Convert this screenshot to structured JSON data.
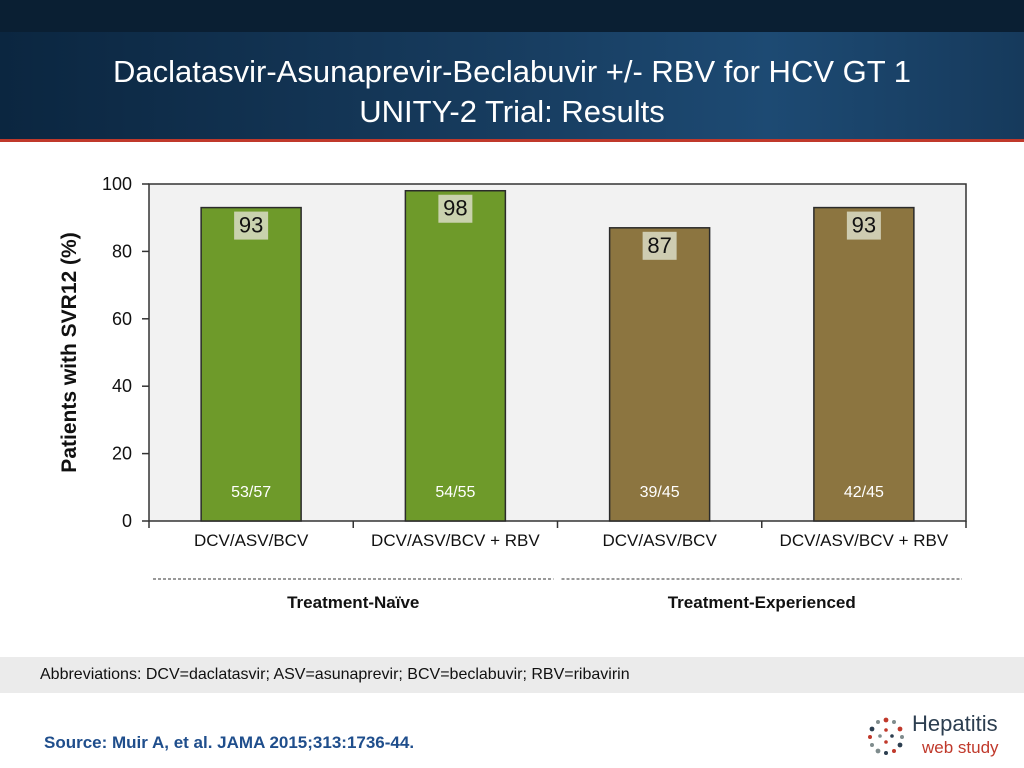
{
  "header": {
    "title_line1": "Daclatasvir-Asunaprevir-Beclabuvir +/- RBV for HCV GT 1",
    "title_line2": "UNITY-2 Trial: Results"
  },
  "chart_data": {
    "type": "bar",
    "title": "",
    "ylabel": "Patients with SVR12 (%)",
    "xlabel": "",
    "ylim": [
      0,
      100
    ],
    "yticks": [
      0,
      20,
      40,
      60,
      80,
      100
    ],
    "categories": [
      "DCV/ASV/BCV",
      "DCV/ASV/BCV + RBV",
      "DCV/ASV/BCV",
      "DCV/ASV/BCV + RBV"
    ],
    "values": [
      93,
      98,
      87,
      93
    ],
    "value_labels": [
      "93",
      "98",
      "87",
      "93"
    ],
    "fractions": [
      "53/57",
      "54/55",
      "39/45",
      "42/45"
    ],
    "colors": [
      "#6e9a2a",
      "#6e9a2a",
      "#8c7540",
      "#8c7540"
    ],
    "groups": [
      {
        "label": "Treatment-Naïve",
        "categories": [
          0,
          1
        ]
      },
      {
        "label": "Treatment-Experienced",
        "categories": [
          2,
          3
        ]
      }
    ],
    "grid": false,
    "legend": "none",
    "plot_background": "#f2f2f2"
  },
  "footer": {
    "abbreviations": "Abbreviations: DCV=daclatasvir; ASV=asunaprevir; BCV=beclabuvir; RBV=ribavirin",
    "source": "Source: Muir A, et al. JAMA 2015;313:1736-44.",
    "logo_word1": "Hepatitis",
    "logo_word2": "web study"
  }
}
